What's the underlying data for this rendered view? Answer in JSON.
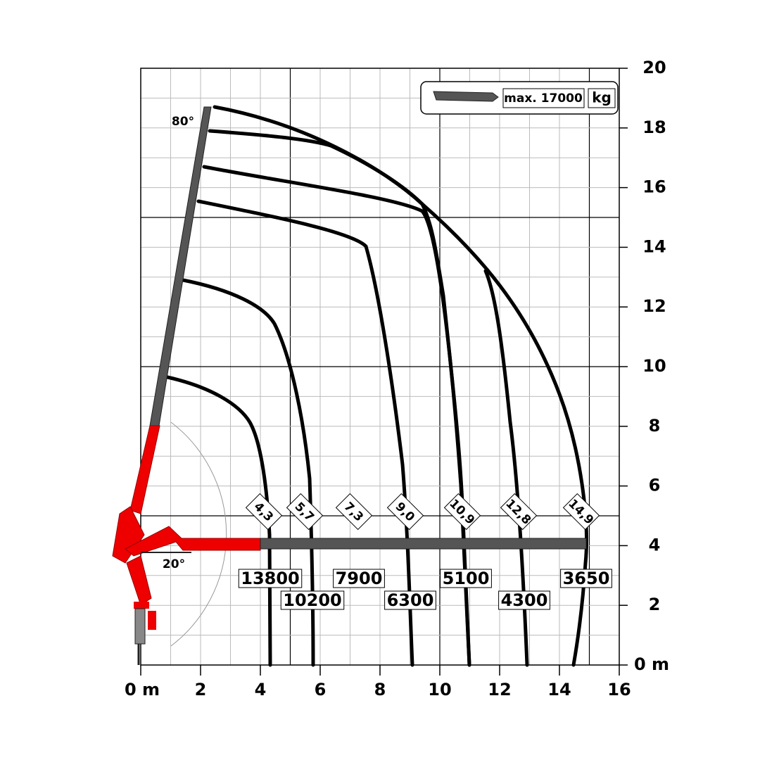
{
  "x_axis": {
    "ticks": [
      "0 m",
      "2",
      "4",
      "6",
      "8",
      "10",
      "12",
      "14",
      "16"
    ]
  },
  "y_axis": {
    "ticks": [
      "0 m",
      "2",
      "4",
      "6",
      "8",
      "10",
      "12",
      "14",
      "16",
      "18",
      "20"
    ]
  },
  "legend": {
    "capacity": "max. 17000",
    "unit": "kg"
  },
  "angles": {
    "top": "80°",
    "bottom": "20°"
  },
  "reach_labels": [
    "4,3",
    "5,7",
    "7,3",
    "9,0",
    "10,9",
    "12,8",
    "14,9"
  ],
  "load_labels": [
    "13800",
    "10200",
    "7900",
    "6300",
    "5100",
    "4300",
    "3650"
  ]
}
